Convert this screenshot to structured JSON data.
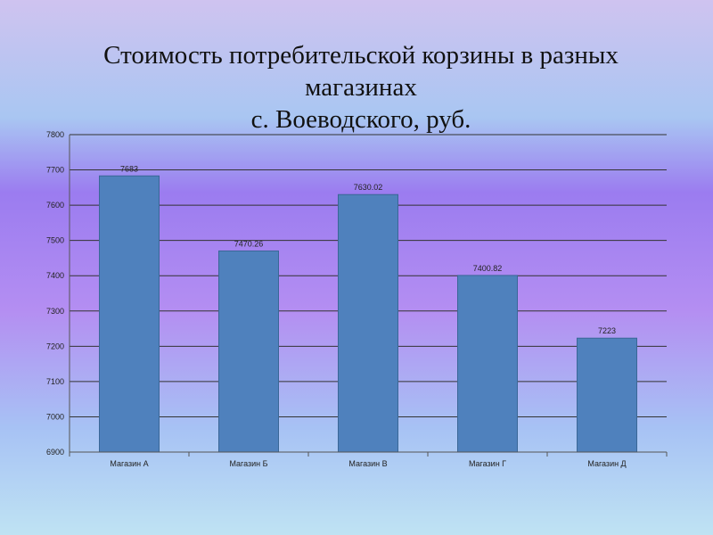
{
  "title": {
    "line1": "Стоимость потребительской корзины в разных",
    "line2": "магазинах",
    "line3": "с. Воеводского, руб."
  },
  "colors": {
    "bar": "#4f81bd",
    "bar_edge": "#3a6797",
    "grid": "#333333"
  },
  "chart_data": {
    "type": "bar",
    "title": "Стоимость потребительской корзины в разных магазинах с. Воеводского, руб.",
    "categories": [
      "Магазин А",
      "Магазин Б",
      "Магазин В",
      "Магазин Г",
      "Магазин Д"
    ],
    "values": [
      7683,
      7470.26,
      7630.02,
      7400.82,
      7223
    ],
    "data_labels": [
      "7683",
      "7470.26",
      "7630.02",
      "7400.82",
      "7223"
    ],
    "ylim": [
      6900,
      7800
    ],
    "yticks": [
      6900,
      7000,
      7100,
      7200,
      7300,
      7400,
      7500,
      7600,
      7700,
      7800
    ],
    "grid": true,
    "legend": "none",
    "xlabel": "",
    "ylabel": ""
  }
}
